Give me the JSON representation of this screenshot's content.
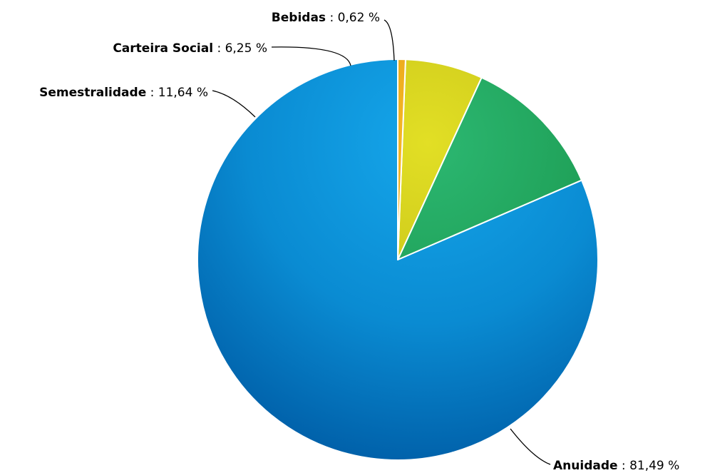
{
  "chart_data": {
    "type": "pie",
    "title": "",
    "separator": " : ",
    "unit": " %",
    "slices": [
      {
        "name": "Anuidade",
        "value": 81.49,
        "value_label": "81,49",
        "color": "#0a8bd2",
        "color_light": "#15a6ea",
        "color_dark": "#005fa8"
      },
      {
        "name": "Semestralidade",
        "value": 11.64,
        "value_label": "11,64",
        "color": "#1e9e55",
        "color_light": "#2cb872",
        "color_dark": "#137a3c"
      },
      {
        "name": "Carteira Social",
        "value": 6.25,
        "value_label": "6,25",
        "color": "#c8c418",
        "color_light": "#e2df25",
        "color_dark": "#a8a40c"
      },
      {
        "name": "Bebidas",
        "value": 0.62,
        "value_label": "0,62",
        "color": "#e8a10e",
        "color_light": "#f4b82a",
        "color_dark": "#c98500"
      }
    ]
  }
}
